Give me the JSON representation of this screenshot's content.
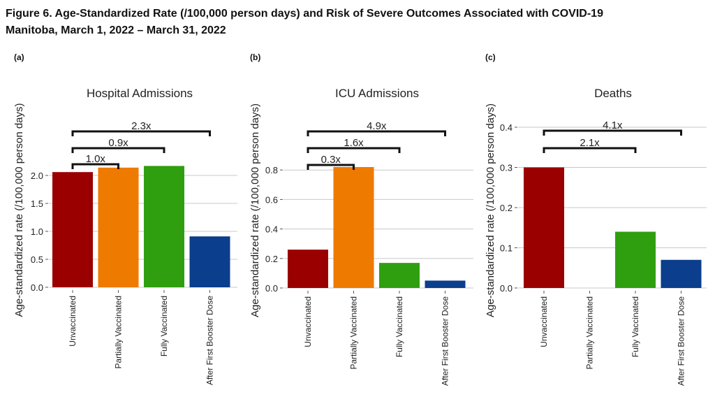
{
  "figure": {
    "title_line1": "Figure 6. Age-Standardized Rate (/100,000 person days) and Risk of Severe Outcomes Associated with COVID-19",
    "title_line2": "Manitoba, March 1, 2022 – March 31, 2022"
  },
  "colors": {
    "Unvaccinated": "#9a0000",
    "Partially Vaccinated": "#ef7a00",
    "Fully Vaccinated": "#2f9f10",
    "After First Booster Dose": "#0b3e8c",
    "grid": "#c8c8c8",
    "text": "#222222"
  },
  "chart_data": [
    {
      "type": "bar",
      "panel": "(a)",
      "title": "Hospital Admissions",
      "xlabel": "",
      "ylabel": "Age-standardized rate (/100,000 person days)",
      "categories": [
        "Unvaccinated",
        "Partially Vaccinated",
        "Fully Vaccinated",
        "After First Booster Dose"
      ],
      "values": [
        2.06,
        2.14,
        2.17,
        0.91
      ],
      "yticks": [
        "0.0",
        "0.5",
        "1.0",
        "1.5",
        "2.0"
      ],
      "ytick_values": [
        0,
        0.5,
        1.0,
        1.5,
        2.0
      ],
      "ylim": [
        0,
        2.6
      ],
      "grid": true,
      "annotations": [
        {
          "label": "1.0x",
          "from": 0,
          "to": 1
        },
        {
          "label": "0.9x",
          "from": 0,
          "to": 2
        },
        {
          "label": "2.3x",
          "from": 0,
          "to": 3
        }
      ]
    },
    {
      "type": "bar",
      "panel": "(b)",
      "title": "ICU Admissions",
      "xlabel": "",
      "ylabel": "Age-standardized rate (/100,000 person days)",
      "categories": [
        "Unvaccinated",
        "Partially Vaccinated",
        "Fully Vaccinated",
        "After First Booster Dose"
      ],
      "values": [
        0.26,
        0.82,
        0.17,
        0.05
      ],
      "yticks": [
        "0.0",
        "0.2",
        "0.4",
        "0.6",
        "0.8"
      ],
      "ytick_values": [
        0,
        0.2,
        0.4,
        0.6,
        0.8
      ],
      "ylim": [
        0,
        1.0
      ],
      "grid": true,
      "annotations": [
        {
          "label": "0.3x",
          "from": 0,
          "to": 1
        },
        {
          "label": "1.6x",
          "from": 0,
          "to": 2
        },
        {
          "label": "4.9x",
          "from": 0,
          "to": 3
        }
      ]
    },
    {
      "type": "bar",
      "panel": "(c)",
      "title": "Deaths",
      "xlabel": "",
      "ylabel": "Age-standardized rate (/100,000 person days)",
      "categories": [
        "Unvaccinated",
        "Partially Vaccinated",
        "Fully Vaccinated",
        "After First Booster Dose"
      ],
      "values": [
        0.3,
        0,
        0.14,
        0.07
      ],
      "yticks": [
        "0.0",
        "0.1",
        "0.2",
        "0.3",
        "0.4"
      ],
      "ytick_values": [
        0,
        0.1,
        0.2,
        0.3,
        0.4
      ],
      "ylim": [
        0,
        0.4
      ],
      "grid": true,
      "annotations": [
        {
          "label": "2.1x",
          "from": 0,
          "to": 2
        },
        {
          "label": "4.1x",
          "from": 0,
          "to": 3
        }
      ]
    }
  ]
}
